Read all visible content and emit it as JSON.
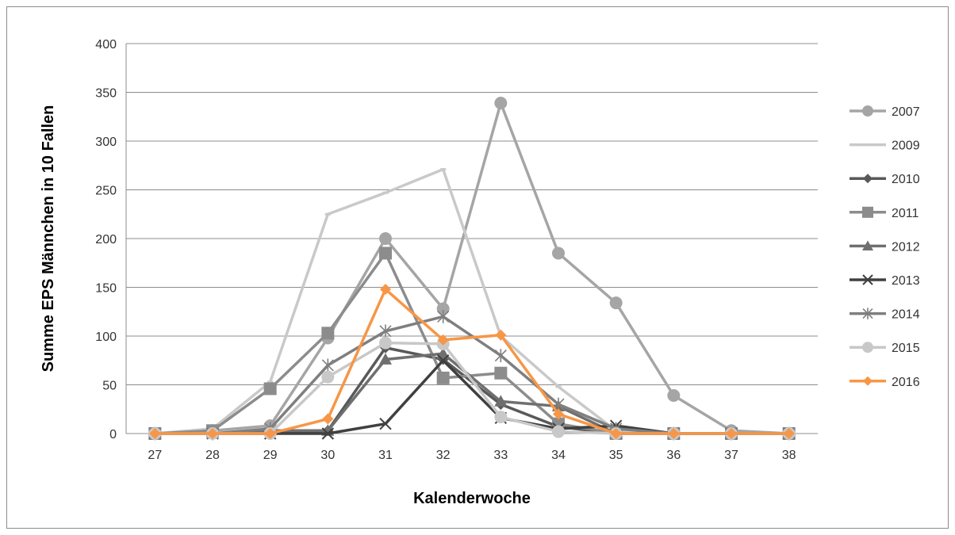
{
  "chart_data": {
    "type": "line",
    "title": "",
    "xlabel": "Kalenderwoche",
    "ylabel": "Summe EPS Männchen in 10 Fallen",
    "x": [
      27,
      28,
      29,
      30,
      31,
      32,
      33,
      34,
      35,
      36,
      37,
      38
    ],
    "xlim": [
      27,
      38
    ],
    "ylim": [
      0,
      400
    ],
    "yticks": [
      0,
      50,
      100,
      150,
      200,
      250,
      300,
      350,
      400
    ],
    "grid": "horizontal",
    "legend": "right",
    "series": [
      {
        "name": "2007",
        "color": "#a5a5a5",
        "marker": "circle",
        "values": [
          0,
          3,
          8,
          98,
          200,
          128,
          339,
          185,
          134,
          39,
          3,
          0
        ]
      },
      {
        "name": "2009",
        "color": "#c9c9c9",
        "marker": "dash",
        "values": [
          0,
          5,
          53,
          225,
          247,
          271,
          100,
          48,
          3,
          0,
          0,
          0
        ]
      },
      {
        "name": "2010",
        "color": "#595959",
        "marker": "diamond",
        "values": [
          0,
          0,
          0,
          3,
          88,
          76,
          30,
          7,
          0,
          0,
          0,
          0
        ]
      },
      {
        "name": "2011",
        "color": "#8c8c8c",
        "marker": "square",
        "values": [
          0,
          3,
          46,
          103,
          185,
          57,
          62,
          10,
          0,
          0,
          0,
          0
        ]
      },
      {
        "name": "2012",
        "color": "#6f6f6f",
        "marker": "triangle",
        "values": [
          0,
          0,
          3,
          3,
          76,
          82,
          33,
          28,
          0,
          0,
          0,
          0
        ]
      },
      {
        "name": "2013",
        "color": "#404040",
        "marker": "x",
        "values": [
          0,
          0,
          0,
          0,
          10,
          75,
          16,
          5,
          8,
          0,
          0,
          0
        ]
      },
      {
        "name": "2014",
        "color": "#7f7f7f",
        "marker": "star",
        "values": [
          0,
          0,
          5,
          70,
          105,
          120,
          80,
          30,
          5,
          0,
          0,
          0
        ]
      },
      {
        "name": "2015",
        "color": "#c8c8c8",
        "marker": "circle",
        "values": [
          0,
          0,
          0,
          58,
          93,
          92,
          17,
          2,
          0,
          0,
          0,
          0
        ]
      },
      {
        "name": "2016",
        "color": "#f79646",
        "marker": "diamond",
        "values": [
          0,
          0,
          0,
          15,
          148,
          96,
          101,
          20,
          0,
          0,
          0,
          0
        ]
      }
    ]
  }
}
